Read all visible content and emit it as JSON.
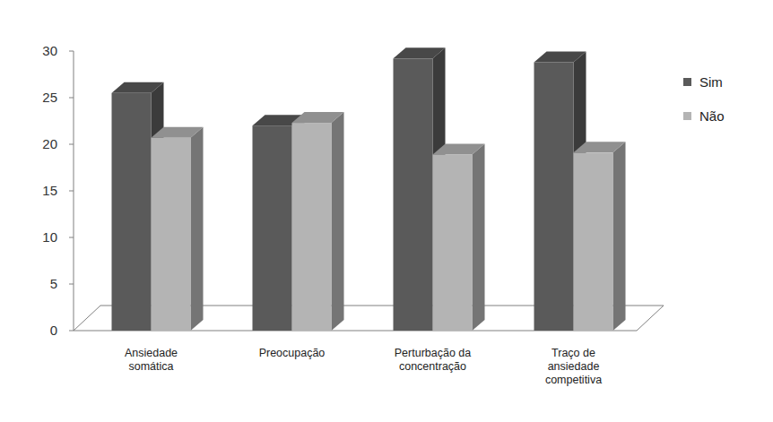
{
  "chart_data": {
    "type": "bar",
    "categories": [
      "Ansiedade somática",
      "Preocupação",
      "Perturbação da concentração",
      "Traço de ansiedade competitiva"
    ],
    "series": [
      {
        "name": "Sim",
        "color": "#5a5a5a",
        "values": [
          25.5,
          22.0,
          29.2,
          28.8
        ]
      },
      {
        "name": "Não",
        "color": "#b4b4b4",
        "values": [
          20.7,
          22.3,
          18.9,
          19.1
        ]
      }
    ],
    "ylim": [
      0,
      30
    ],
    "yticks": [
      0,
      5,
      10,
      15,
      20,
      25,
      30
    ],
    "grid": false,
    "legend": "right"
  }
}
